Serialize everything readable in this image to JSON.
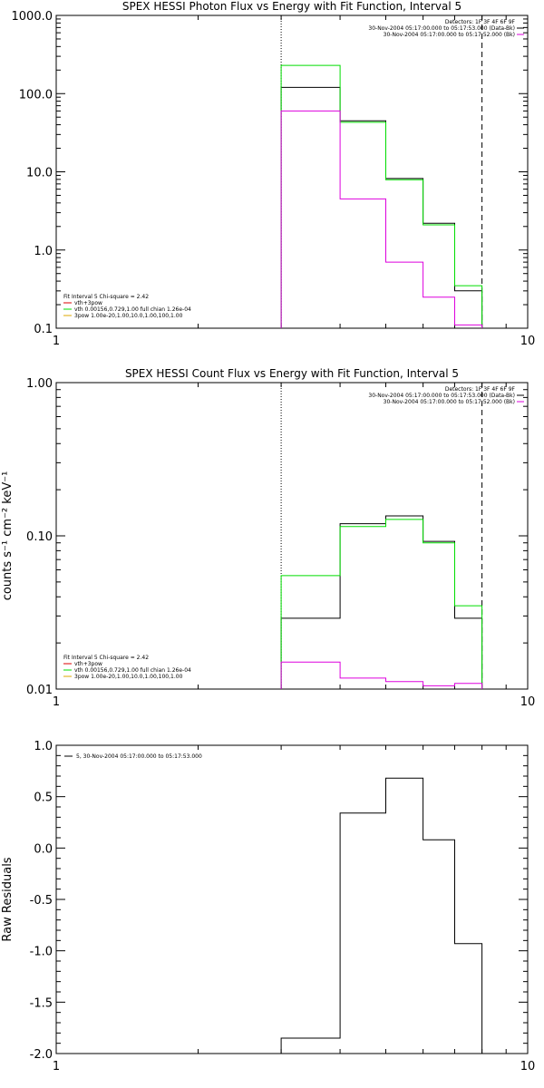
{
  "chart_data": [
    {
      "type": "line",
      "title": "SPEX HESSI Photon Flux vs Energy with Fit Function, Interval 5",
      "xlabel": "",
      "ylabel": "",
      "xscale": "log",
      "yscale": "log",
      "xlim": [
        1,
        10
      ],
      "ylim": [
        0.1,
        1000
      ],
      "x_ticks": [
        1,
        10
      ],
      "x_tick_labels": [
        "1",
        "10"
      ],
      "y_ticks": [
        0.1,
        1,
        10,
        100,
        1000
      ],
      "y_tick_labels": [
        "0.1",
        "1.0",
        "10.0",
        "100.0",
        "1000.0"
      ],
      "vlines": [
        {
          "x": 3,
          "style": "dotted"
        },
        {
          "x": 8,
          "style": "dashed"
        }
      ],
      "info_lines": [
        "Detectors: 1F 3F 4F 6F 9F",
        "30-Nov-2004 05:17:00.000 to 05:17:53.000 (Data-Bk)",
        "30-Nov-2004 05:17:00.000 to 05:17:52.000 (Bk)"
      ],
      "fit_lines": [
        "Fit Interval 5   Chi-square = 2.42",
        "vth+3pow",
        "vth 0.00156,0.729,1.00  full chian 1.26e-04",
        "3pow 1.00e-20,1.00,10.0,1.00,100,1.00"
      ],
      "edges": [
        3,
        4,
        5,
        6,
        7,
        8
      ],
      "series": [
        {
          "label": "Data-Bk",
          "color": "#000000",
          "values": [
            120,
            45,
            8.2,
            2.2,
            0.3
          ]
        },
        {
          "label": "vth+3pow",
          "color": "#00dd00",
          "values": [
            230,
            43,
            7.9,
            2.1,
            0.35
          ]
        },
        {
          "label": "Bk",
          "color": "#dd00dd",
          "values": [
            60,
            4.5,
            0.7,
            0.25,
            0.11
          ]
        }
      ]
    },
    {
      "type": "line",
      "title": "SPEX HESSI Count Flux vs Energy with Fit Function, Interval 5",
      "xlabel": "",
      "ylabel": "counts s⁻¹ cm⁻² keV⁻¹",
      "xscale": "log",
      "yscale": "log",
      "xlim": [
        1,
        10
      ],
      "ylim": [
        0.01,
        1
      ],
      "x_ticks": [
        1,
        10
      ],
      "x_tick_labels": [
        "1",
        "10"
      ],
      "y_ticks": [
        0.01,
        0.1,
        1
      ],
      "y_tick_labels": [
        "0.01",
        "0.10",
        "1.00"
      ],
      "vlines": [
        {
          "x": 3,
          "style": "dotted"
        },
        {
          "x": 8,
          "style": "dashed"
        }
      ],
      "info_lines": [
        "Detectors: 1F 3F 4F 6F 9F",
        "30-Nov-2004 05:17:00.000 to 05:17:53.000 (Data-Bk)",
        "30-Nov-2004 05:17:00.000 to 05:17:52.000 (Bk)"
      ],
      "fit_lines": [
        "Fit Interval 5   Chi-square = 2.42",
        "vth+3pow",
        "vth 0.00156,0.729,1.00  full chian 1.26e-04",
        "3pow 1.00e-20,1.00,10.0,1.00,100,1.00"
      ],
      "edges": [
        3,
        4,
        5,
        6,
        7,
        8
      ],
      "series": [
        {
          "label": "Data-Bk",
          "color": "#000000",
          "values": [
            0.029,
            0.12,
            0.135,
            0.092,
            0.029
          ]
        },
        {
          "label": "vth+3pow",
          "color": "#00dd00",
          "values": [
            0.055,
            0.115,
            0.128,
            0.09,
            0.035
          ]
        },
        {
          "label": "Bk",
          "color": "#dd00dd",
          "values": [
            0.015,
            0.0118,
            0.0112,
            0.0105,
            0.0109
          ]
        }
      ]
    },
    {
      "type": "line",
      "title": "",
      "xlabel": "",
      "ylabel": "Raw Residuals",
      "xscale": "log",
      "yscale": "linear",
      "xlim": [
        1,
        10
      ],
      "ylim": [
        -2,
        1
      ],
      "x_ticks": [
        1,
        10
      ],
      "x_tick_labels": [
        "1",
        "10"
      ],
      "y_ticks": [
        -2,
        -1.5,
        -1,
        -0.5,
        0,
        0.5,
        1
      ],
      "y_tick_labels": [
        "-2.0",
        "-1.5",
        "-1.0",
        "-0.5",
        "0.0",
        "0.5",
        "1.0"
      ],
      "legend": "5, 30-Nov-2004 05:17:00.000 to 05:17:53.000",
      "edges": [
        3,
        4,
        5,
        6,
        7,
        8
      ],
      "series": [
        {
          "label": "5",
          "color": "#000000",
          "values": [
            -1.85,
            0.34,
            0.68,
            0.08,
            -0.93
          ]
        }
      ]
    }
  ]
}
